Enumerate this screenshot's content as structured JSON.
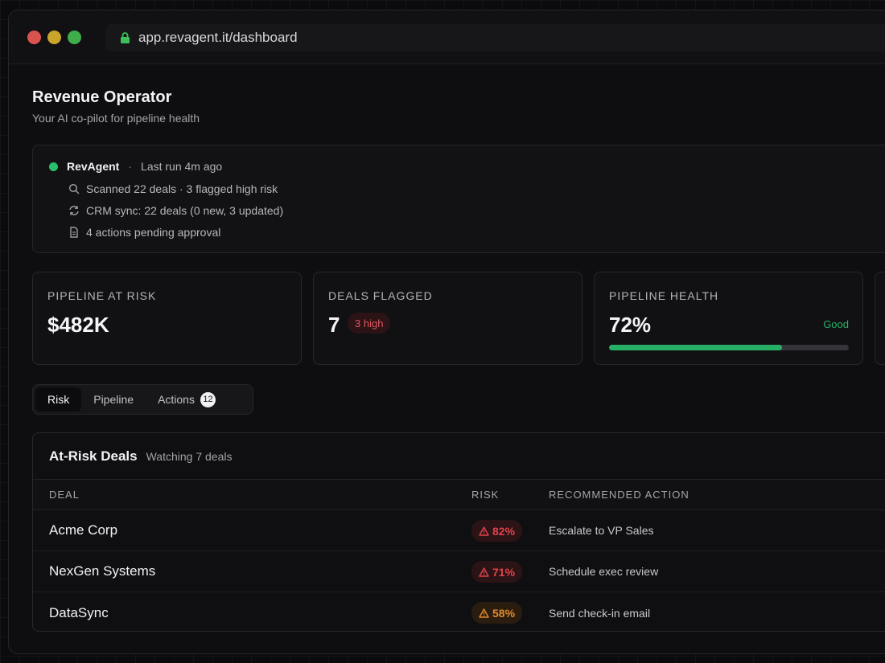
{
  "browser": {
    "url": "app.revagent.it/dashboard"
  },
  "page": {
    "title": "Revenue Operator",
    "subtitle": "Your AI co-pilot for pipeline health"
  },
  "agent": {
    "name": "RevAgent",
    "separator": "·",
    "last_run": "Last run 4m ago",
    "lines": [
      {
        "icon": "search-icon",
        "text": "Scanned 22 deals · 3 flagged high risk"
      },
      {
        "icon": "sync-icon",
        "text": "CRM sync: 22 deals (0 new, 3 updated)"
      },
      {
        "icon": "document-icon",
        "text": "4 actions pending approval"
      }
    ]
  },
  "stats": {
    "pipeline_at_risk": {
      "label": "PIPELINE AT RISK",
      "value": "$482K"
    },
    "deals_flagged": {
      "label": "DEALS FLAGGED",
      "value": "7",
      "badge": "3 high"
    },
    "pipeline_health": {
      "label": "PIPELINE HEALTH",
      "value": "72%",
      "status": "Good",
      "progress": 0.72
    }
  },
  "tabs": [
    {
      "label": "Risk",
      "active": true
    },
    {
      "label": "Pipeline",
      "active": false
    },
    {
      "label": "Actions",
      "active": false,
      "count": "12"
    }
  ],
  "table": {
    "title": "At-Risk Deals",
    "subtitle": "Watching 7 deals",
    "columns": {
      "deal": "DEAL",
      "risk": "RISK",
      "action": "RECOMMENDED ACTION"
    },
    "rows": [
      {
        "deal": "Acme Corp",
        "risk": "82%",
        "action": "Escalate to VP Sales",
        "level": "high"
      },
      {
        "deal": "NexGen Systems",
        "risk": "71%",
        "action": "Schedule exec review",
        "level": "high"
      },
      {
        "deal": "DataSync",
        "risk": "58%",
        "action": "Send check-in email",
        "level": "medium"
      }
    ]
  },
  "colors": {
    "accent_green": "#27b065",
    "risk_high_text": "#e0424b",
    "risk_high_bg": "#2c1316",
    "risk_medium_text": "#e08a2a",
    "risk_medium_bg": "#2a1d10"
  }
}
